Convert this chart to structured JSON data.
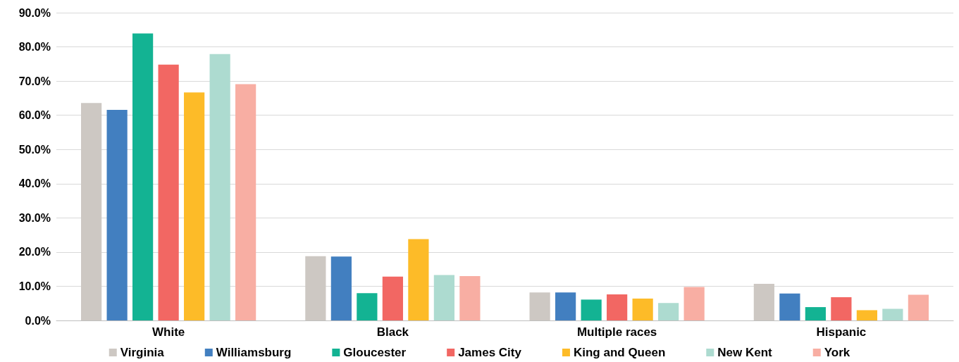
{
  "chart_data": {
    "type": "bar",
    "categories": [
      "White",
      "Black",
      "Multiple races",
      "Hispanic"
    ],
    "series": [
      {
        "name": "Virginia",
        "color": "#cdc8c3",
        "values": [
          63.6,
          18.8,
          8.2,
          10.7
        ]
      },
      {
        "name": "Williamsburg",
        "color": "#427fc0",
        "values": [
          61.6,
          18.7,
          8.2,
          7.9
        ]
      },
      {
        "name": "Gloucester",
        "color": "#13b393",
        "values": [
          83.9,
          8.0,
          6.1,
          3.9
        ]
      },
      {
        "name": "James City",
        "color": "#f26763",
        "values": [
          74.8,
          12.8,
          7.6,
          6.8
        ]
      },
      {
        "name": "King and Queen",
        "color": "#fdbb28",
        "values": [
          66.7,
          23.8,
          6.4,
          3.0
        ]
      },
      {
        "name": "New Kent",
        "color": "#addbd0",
        "values": [
          77.9,
          13.3,
          5.1,
          3.4
        ]
      },
      {
        "name": "York",
        "color": "#f8aea3",
        "values": [
          69.1,
          13.0,
          9.8,
          7.5
        ]
      }
    ],
    "ylim": [
      0,
      90
    ],
    "yticks": [
      {
        "value": 0,
        "label": "0.0%"
      },
      {
        "value": 10,
        "label": "10.0%"
      },
      {
        "value": 20,
        "label": "20.0%"
      },
      {
        "value": 30,
        "label": "30.0%"
      },
      {
        "value": 40,
        "label": "40.0%"
      },
      {
        "value": 50,
        "label": "50.0%"
      },
      {
        "value": 60,
        "label": "60.0%"
      },
      {
        "value": 70,
        "label": "70.0%"
      },
      {
        "value": 80,
        "label": "80.0%"
      },
      {
        "value": 90,
        "label": "90.0%"
      }
    ],
    "grid": "y",
    "legend": "bottom"
  }
}
